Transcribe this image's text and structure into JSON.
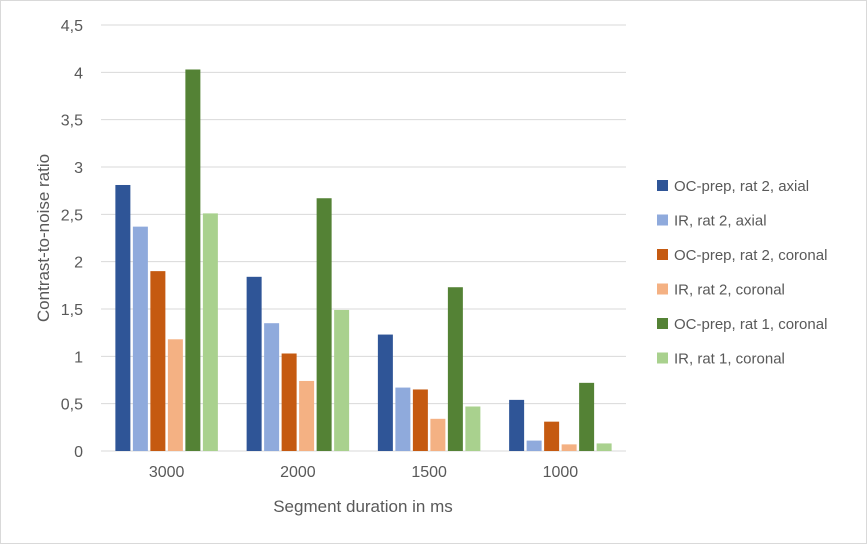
{
  "chart_data": {
    "type": "bar",
    "title": "",
    "xlabel": "Segment duration in ms",
    "ylabel": "Contrast-to-noise ratio",
    "ylim": [
      0,
      4.5
    ],
    "yticks": [
      "0",
      "0,5",
      "1",
      "1,5",
      "2",
      "2,5",
      "3",
      "3,5",
      "4",
      "4,5"
    ],
    "ytick_values": [
      0,
      0.5,
      1,
      1.5,
      2,
      2.5,
      3,
      3.5,
      4,
      4.5
    ],
    "grid": true,
    "legend_position": "right",
    "categories": [
      "3000",
      "2000",
      "1500",
      "1000"
    ],
    "series": [
      {
        "name": "OC-prep, rat 2, axial",
        "color": "#2F5597",
        "values": [
          2.81,
          1.84,
          1.23,
          0.54
        ]
      },
      {
        "name": "IR, rat 2, axial",
        "color": "#8FAADC",
        "values": [
          2.37,
          1.35,
          0.67,
          0.11
        ]
      },
      {
        "name": "OC-prep, rat 2, coronal",
        "color": "#C55A11",
        "values": [
          1.9,
          1.03,
          0.65,
          0.31
        ]
      },
      {
        "name": "IR, rat 2, coronal",
        "color": "#F4B183",
        "values": [
          1.18,
          0.74,
          0.34,
          0.07
        ]
      },
      {
        "name": "OC-prep, rat 1, coronal",
        "color": "#548235",
        "values": [
          4.03,
          2.67,
          1.73,
          0.72
        ]
      },
      {
        "name": "IR, rat 1, coronal",
        "color": "#A9D18E",
        "values": [
          2.51,
          1.49,
          0.47,
          0.08
        ]
      }
    ]
  }
}
